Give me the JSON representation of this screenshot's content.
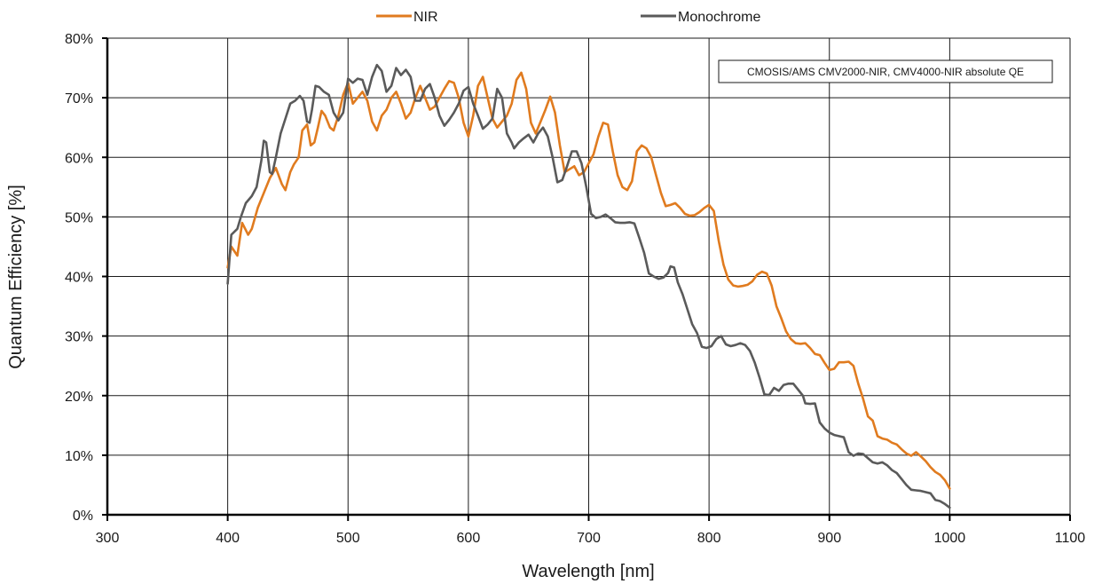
{
  "chart_data": {
    "type": "line",
    "title": "",
    "xlabel": "Wavelength [nm]",
    "ylabel": "Quantum Efficiency [%]",
    "annotation": "CMOSIS/AMS CMV2000-NIR, CMV4000-NIR absolute QE",
    "xlim": [
      300,
      1100
    ],
    "ylim": [
      0,
      80
    ],
    "x_ticks": [
      300,
      400,
      500,
      600,
      700,
      800,
      900,
      1000,
      1100
    ],
    "y_ticks": [
      0,
      10,
      20,
      30,
      40,
      50,
      60,
      70,
      80
    ],
    "x_tick_labels": [
      "300",
      "400",
      "500",
      "600",
      "700",
      "800",
      "900",
      "1000",
      "1100"
    ],
    "y_tick_labels": [
      "0%",
      "10%",
      "20%",
      "30%",
      "40%",
      "50%",
      "60%",
      "70%",
      "80%"
    ],
    "grid": true,
    "legend_position": "top-center",
    "series": [
      {
        "name": "NIR",
        "color": "#e07b1f",
        "points": [
          [
            400,
            41.5
          ],
          [
            403,
            45
          ],
          [
            408,
            43.5
          ],
          [
            412,
            49
          ],
          [
            417,
            47
          ],
          [
            420,
            48
          ],
          [
            425,
            51.5
          ],
          [
            430,
            54
          ],
          [
            435,
            56.5
          ],
          [
            440,
            58.2
          ],
          [
            445,
            55.5
          ],
          [
            448,
            54.5
          ],
          [
            452,
            57.5
          ],
          [
            455,
            58.8
          ],
          [
            459,
            60
          ],
          [
            462,
            64.5
          ],
          [
            466,
            65.5
          ],
          [
            469,
            62
          ],
          [
            472,
            62.5
          ],
          [
            475,
            65
          ],
          [
            478,
            67.8
          ],
          [
            481,
            67
          ],
          [
            485,
            65
          ],
          [
            488,
            64.5
          ],
          [
            492,
            67
          ],
          [
            496,
            70.5
          ],
          [
            500,
            72.5
          ],
          [
            504,
            69
          ],
          [
            508,
            70
          ],
          [
            512,
            71
          ],
          [
            516,
            69.5
          ],
          [
            520,
            66
          ],
          [
            524,
            64.5
          ],
          [
            528,
            67
          ],
          [
            532,
            68
          ],
          [
            536,
            70
          ],
          [
            540,
            71
          ],
          [
            544,
            69
          ],
          [
            548,
            66.5
          ],
          [
            552,
            67.5
          ],
          [
            556,
            70
          ],
          [
            560,
            72
          ],
          [
            564,
            70
          ],
          [
            568,
            68
          ],
          [
            572,
            68.5
          ],
          [
            576,
            70
          ],
          [
            580,
            71.5
          ],
          [
            584,
            72.8
          ],
          [
            588,
            72.5
          ],
          [
            592,
            70
          ],
          [
            596,
            65.8
          ],
          [
            600,
            63.5
          ],
          [
            604,
            67
          ],
          [
            608,
            72
          ],
          [
            612,
            73.5
          ],
          [
            616,
            70
          ],
          [
            620,
            66.5
          ],
          [
            624,
            65
          ],
          [
            628,
            66
          ],
          [
            632,
            67
          ],
          [
            636,
            69
          ],
          [
            640,
            73
          ],
          [
            644,
            74.2
          ],
          [
            648,
            71.5
          ],
          [
            652,
            65.8
          ],
          [
            656,
            64
          ],
          [
            660,
            66
          ],
          [
            664,
            68
          ],
          [
            668,
            70.2
          ],
          [
            672,
            67.5
          ],
          [
            676,
            62
          ],
          [
            680,
            57.5
          ],
          [
            684,
            58
          ],
          [
            688,
            58.5
          ],
          [
            692,
            57
          ],
          [
            696,
            57.5
          ],
          [
            700,
            59
          ],
          [
            704,
            60.5
          ],
          [
            708,
            63.5
          ],
          [
            712,
            65.8
          ],
          [
            716,
            65.5
          ],
          [
            720,
            61
          ],
          [
            724,
            57
          ],
          [
            728,
            55
          ],
          [
            732,
            54.5
          ],
          [
            736,
            56
          ],
          [
            740,
            61
          ],
          [
            744,
            62
          ],
          [
            748,
            61.5
          ],
          [
            752,
            60
          ],
          [
            756,
            57
          ],
          [
            760,
            54
          ],
          [
            764,
            51.8
          ],
          [
            768,
            52
          ],
          [
            772,
            52.3
          ],
          [
            776,
            51.5
          ],
          [
            780,
            50.5
          ],
          [
            784,
            50.2
          ],
          [
            788,
            50.3
          ],
          [
            792,
            50.8
          ],
          [
            796,
            51.5
          ],
          [
            800,
            52
          ],
          [
            804,
            51
          ],
          [
            808,
            46
          ],
          [
            812,
            42
          ],
          [
            816,
            39.5
          ],
          [
            820,
            38.5
          ],
          [
            824,
            38.3
          ],
          [
            828,
            38.4
          ],
          [
            832,
            38.6
          ],
          [
            836,
            39.2
          ],
          [
            840,
            40.3
          ],
          [
            844,
            40.8
          ],
          [
            848,
            40.5
          ],
          [
            852,
            38.5
          ],
          [
            856,
            35
          ],
          [
            860,
            33
          ],
          [
            864,
            30.8
          ],
          [
            868,
            29.5
          ],
          [
            872,
            28.8
          ],
          [
            876,
            28.7
          ],
          [
            880,
            28.8
          ],
          [
            884,
            28
          ],
          [
            888,
            27
          ],
          [
            892,
            26.8
          ],
          [
            896,
            25.5
          ],
          [
            900,
            24.3
          ],
          [
            904,
            24.5
          ],
          [
            908,
            25.6
          ],
          [
            912,
            25.6
          ],
          [
            916,
            25.7
          ],
          [
            920,
            25
          ],
          [
            924,
            22
          ],
          [
            928,
            19.5
          ],
          [
            932,
            16.5
          ],
          [
            936,
            15.8
          ],
          [
            940,
            13.2
          ],
          [
            944,
            12.8
          ],
          [
            948,
            12.6
          ],
          [
            952,
            12.1
          ],
          [
            956,
            11.8
          ],
          [
            960,
            11
          ],
          [
            964,
            10.3
          ],
          [
            968,
            9.9
          ],
          [
            972,
            10.5
          ],
          [
            976,
            9.8
          ],
          [
            980,
            9
          ],
          [
            984,
            8
          ],
          [
            988,
            7.2
          ],
          [
            992,
            6.7
          ],
          [
            996,
            5.8
          ],
          [
            1000,
            4.4
          ]
        ]
      },
      {
        "name": "Monochrome",
        "color": "#5a5a5a",
        "points": [
          [
            400,
            38.8
          ],
          [
            403,
            47
          ],
          [
            408,
            48
          ],
          [
            411,
            50
          ],
          [
            415,
            52.3
          ],
          [
            420,
            53.5
          ],
          [
            424,
            55
          ],
          [
            428,
            59.5
          ],
          [
            430,
            62.8
          ],
          [
            432,
            62.5
          ],
          [
            435,
            57.5
          ],
          [
            437,
            57.2
          ],
          [
            440,
            60
          ],
          [
            444,
            64
          ],
          [
            448,
            66.5
          ],
          [
            452,
            69
          ],
          [
            456,
            69.5
          ],
          [
            460,
            70.3
          ],
          [
            463,
            69.5
          ],
          [
            466,
            66
          ],
          [
            468,
            65.8
          ],
          [
            470,
            68
          ],
          [
            473,
            72
          ],
          [
            476,
            71.8
          ],
          [
            480,
            71
          ],
          [
            484,
            70.5
          ],
          [
            488,
            67.5
          ],
          [
            492,
            66.2
          ],
          [
            496,
            67.5
          ],
          [
            500,
            73.2
          ],
          [
            504,
            72.5
          ],
          [
            508,
            73.2
          ],
          [
            512,
            73
          ],
          [
            516,
            70.5
          ],
          [
            520,
            73.5
          ],
          [
            524,
            75.5
          ],
          [
            528,
            74.5
          ],
          [
            532,
            71
          ],
          [
            536,
            72
          ],
          [
            540,
            75
          ],
          [
            544,
            73.8
          ],
          [
            548,
            74.7
          ],
          [
            552,
            73.5
          ],
          [
            556,
            69.5
          ],
          [
            560,
            69.5
          ],
          [
            564,
            71.5
          ],
          [
            568,
            72.3
          ],
          [
            572,
            70
          ],
          [
            576,
            67
          ],
          [
            580,
            65.3
          ],
          [
            584,
            66.3
          ],
          [
            588,
            67.5
          ],
          [
            592,
            69
          ],
          [
            596,
            71.2
          ],
          [
            600,
            71.8
          ],
          [
            604,
            69
          ],
          [
            608,
            67
          ],
          [
            612,
            64.8
          ],
          [
            616,
            65.5
          ],
          [
            620,
            66.5
          ],
          [
            624,
            71.5
          ],
          [
            628,
            70
          ],
          [
            632,
            64
          ],
          [
            636,
            62.5
          ],
          [
            638,
            61.5
          ],
          [
            642,
            62.5
          ],
          [
            646,
            63.2
          ],
          [
            650,
            63.8
          ],
          [
            654,
            62.5
          ],
          [
            658,
            64
          ],
          [
            662,
            65
          ],
          [
            666,
            63.5
          ],
          [
            670,
            60
          ],
          [
            674,
            55.8
          ],
          [
            678,
            56.2
          ],
          [
            682,
            58.5
          ],
          [
            686,
            61
          ],
          [
            690,
            61
          ],
          [
            694,
            59
          ],
          [
            698,
            55
          ],
          [
            702,
            50.5
          ],
          [
            706,
            49.8
          ],
          [
            710,
            50
          ],
          [
            714,
            50.4
          ],
          [
            718,
            49.8
          ],
          [
            722,
            49.1
          ],
          [
            726,
            49
          ],
          [
            730,
            49
          ],
          [
            734,
            49.1
          ],
          [
            738,
            48.9
          ],
          [
            742,
            46.5
          ],
          [
            746,
            44
          ],
          [
            750,
            40.5
          ],
          [
            754,
            40
          ],
          [
            758,
            39.6
          ],
          [
            762,
            39.8
          ],
          [
            766,
            40.6
          ],
          [
            768,
            41.7
          ],
          [
            771,
            41.5
          ],
          [
            774,
            39
          ],
          [
            778,
            37
          ],
          [
            782,
            34.5
          ],
          [
            786,
            32
          ],
          [
            790,
            30.5
          ],
          [
            794,
            28.2
          ],
          [
            798,
            28
          ],
          [
            802,
            28.3
          ],
          [
            806,
            29.5
          ],
          [
            810,
            30
          ],
          [
            814,
            28.6
          ],
          [
            818,
            28.3
          ],
          [
            822,
            28.5
          ],
          [
            826,
            28.8
          ],
          [
            830,
            28.5
          ],
          [
            834,
            27.5
          ],
          [
            838,
            25.5
          ],
          [
            842,
            23
          ],
          [
            846,
            20.2
          ],
          [
            850,
            20.1
          ],
          [
            854,
            21.3
          ],
          [
            858,
            20.8
          ],
          [
            862,
            21.8
          ],
          [
            866,
            22
          ],
          [
            870,
            22
          ],
          [
            874,
            21
          ],
          [
            878,
            20
          ],
          [
            880,
            18.7
          ],
          [
            884,
            18.6
          ],
          [
            888,
            18.7
          ],
          [
            892,
            15.5
          ],
          [
            896,
            14.5
          ],
          [
            900,
            13.8
          ],
          [
            904,
            13.4
          ],
          [
            908,
            13.2
          ],
          [
            912,
            13
          ],
          [
            916,
            10.5
          ],
          [
            920,
            9.9
          ],
          [
            924,
            10.3
          ],
          [
            928,
            10.2
          ],
          [
            932,
            9.5
          ],
          [
            936,
            8.8
          ],
          [
            940,
            8.6
          ],
          [
            944,
            8.8
          ],
          [
            948,
            8.3
          ],
          [
            952,
            7.5
          ],
          [
            956,
            7
          ],
          [
            960,
            6
          ],
          [
            964,
            5
          ],
          [
            968,
            4.2
          ],
          [
            972,
            4.1
          ],
          [
            976,
            4
          ],
          [
            980,
            3.8
          ],
          [
            984,
            3.6
          ],
          [
            988,
            2.5
          ],
          [
            992,
            2.3
          ],
          [
            996,
            1.8
          ],
          [
            1000,
            1.2
          ]
        ]
      }
    ]
  }
}
